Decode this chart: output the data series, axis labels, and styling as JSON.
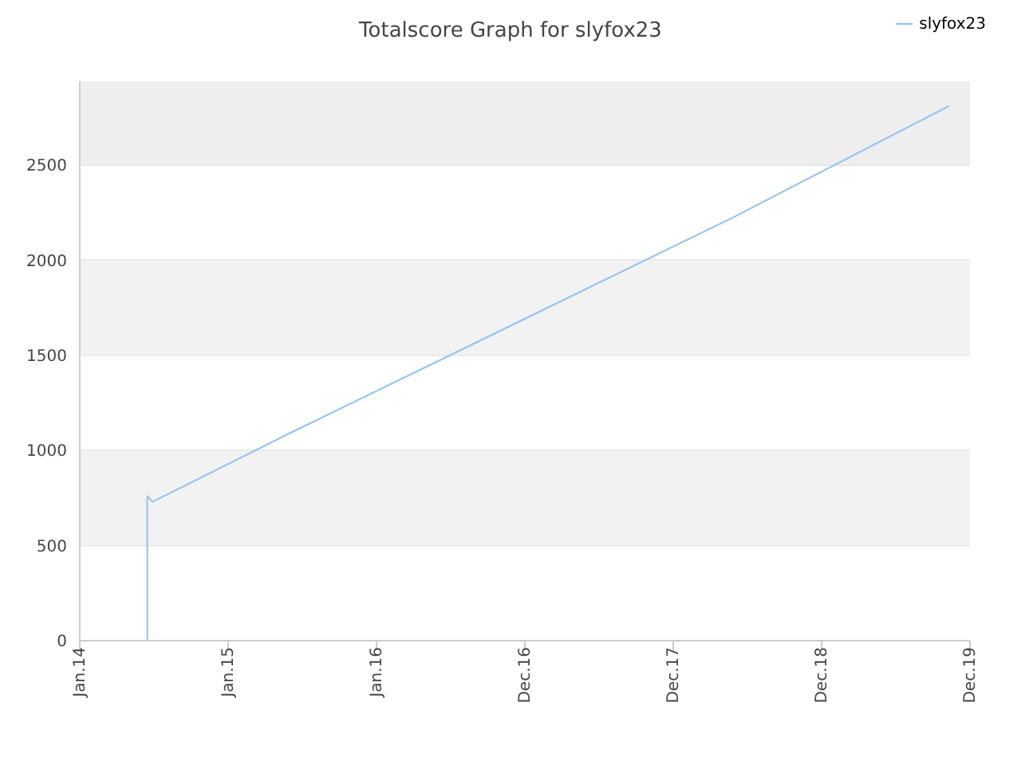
{
  "chart_data": {
    "type": "line",
    "title": "Totalscore Graph for slyfox23",
    "series": [
      {
        "name": "slyfox23",
        "color": "#90c3f5",
        "values": [
          0,
          760,
          730,
          1090,
          1470,
          1850,
          2230,
          2810
        ],
        "x": [
          "2014-06-16",
          "2014-06-16",
          "2014-06-29",
          "2015-06-01",
          "2016-06-01",
          "2017-06-01",
          "2018-06-01",
          "2019-11-09"
        ]
      }
    ],
    "xlim": [
      "2014-01-01",
      "2019-12-31"
    ],
    "xticks": [
      {
        "value": "2014-01-01",
        "label": "Jan.14"
      },
      {
        "value": "2015-01-01",
        "label": "Jan.15"
      },
      {
        "value": "2016-01-01",
        "label": "Jan.16"
      },
      {
        "value": "2016-12-31",
        "label": "Dec.16"
      },
      {
        "value": "2017-12-31",
        "label": "Dec.17"
      },
      {
        "value": "2018-12-31",
        "label": "Dec.18"
      },
      {
        "value": "2019-12-31",
        "label": "Dec.19"
      }
    ],
    "ylim": [
      0,
      2940
    ],
    "yticks": [
      0,
      500,
      1000,
      1500,
      2000,
      2500
    ],
    "bands": [
      {
        "axis": "y",
        "from": 500,
        "to": 1000,
        "color": "#f2f2f2"
      },
      {
        "axis": "y",
        "from": 1500,
        "to": 2000,
        "color": "#f2f2f2"
      },
      {
        "axis": "y",
        "from": 2500,
        "to": 2940,
        "color": "#eeeeee"
      }
    ],
    "grid": "y",
    "legend": "top right",
    "marker": "none",
    "line_style": "solid"
  }
}
